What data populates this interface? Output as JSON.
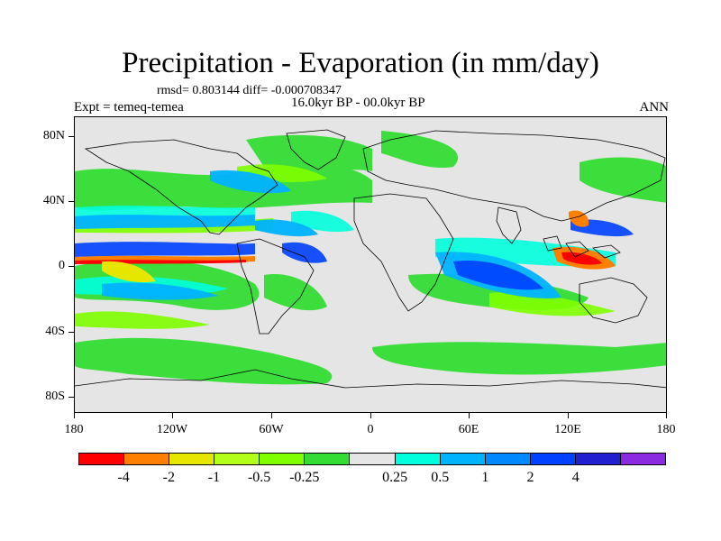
{
  "title": "Precipitation - Evaporation (in mm/day)",
  "stats": "rmsd= 0.803144 diff= -0.000708347",
  "experiment": "Expt = temeq-temea",
  "period": "16.0kyr BP - 00.0kyr BP",
  "season": "ANN",
  "lat_labels": [
    "80N",
    "40N",
    "0",
    "40S",
    "80S"
  ],
  "lon_labels": [
    "180",
    "120W",
    "60W",
    "0",
    "60E",
    "120E",
    "180"
  ],
  "colorbar": {
    "colors": [
      "#ff0000",
      "#ff8000",
      "#e6e600",
      "#b3ff1a",
      "#80ff00",
      "#33dd33",
      "#e5e5e5",
      "#00ffdd",
      "#00b3ff",
      "#0088ff",
      "#0040ff",
      "#2020d0",
      "#8a2be2"
    ],
    "labels": [
      "-4",
      "-2",
      "-1",
      "-0.5",
      "-0.25",
      "0.25",
      "0.5",
      "1",
      "2",
      "4"
    ]
  }
}
